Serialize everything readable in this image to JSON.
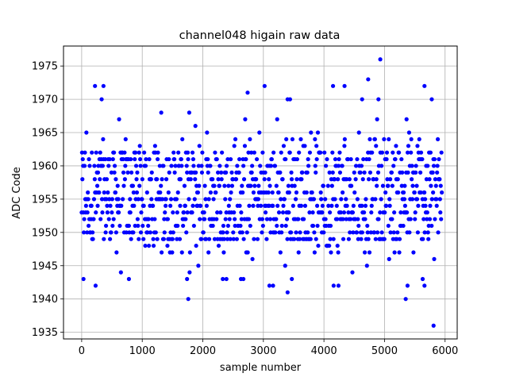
{
  "chart_data": {
    "type": "scatter",
    "title": "channel048 higain raw data",
    "xlabel": "sample number",
    "ylabel": "ADC Code",
    "xlim": [
      -300,
      6200
    ],
    "ylim": [
      1934,
      1978
    ],
    "xticks": [
      0,
      1000,
      2000,
      3000,
      4000,
      5000,
      6000
    ],
    "yticks": [
      1935,
      1940,
      1945,
      1950,
      1955,
      1960,
      1965,
      1970,
      1975
    ],
    "xtick_labels": [
      "0",
      "1000",
      "2000",
      "3000",
      "4000",
      "5000",
      "6000"
    ],
    "ytick_labels": [
      "1935",
      "1940",
      "1945",
      "1950",
      "1955",
      "1960",
      "1965",
      "1970",
      "1975"
    ],
    "grid": true,
    "marker_color": "#0000ff",
    "series": [
      {
        "n_samples": 5950,
        "core_range": [
          1947,
          1962
        ],
        "points": [
          [
            4930,
            1976
          ],
          [
            5810,
            1936
          ],
          [
            1760,
            1940
          ],
          [
            5350,
            1940
          ],
          [
            3400,
            1941
          ],
          [
            3100,
            1942
          ],
          [
            3160,
            1942
          ],
          [
            4160,
            1942
          ],
          [
            4240,
            1942
          ],
          [
            5660,
            1942
          ],
          [
            5380,
            1942
          ],
          [
            230,
            1942
          ],
          [
            30,
            1943
          ],
          [
            780,
            1943
          ],
          [
            1740,
            1943
          ],
          [
            2330,
            1943
          ],
          [
            2390,
            1943
          ],
          [
            2630,
            1943
          ],
          [
            2670,
            1943
          ],
          [
            3470,
            1943
          ],
          [
            5630,
            1943
          ],
          [
            4730,
            1973
          ],
          [
            220,
            1972
          ],
          [
            360,
            1972
          ],
          [
            3020,
            1972
          ],
          [
            4150,
            1972
          ],
          [
            4340,
            1972
          ],
          [
            5660,
            1972
          ],
          [
            2740,
            1971
          ],
          [
            5780,
            1970
          ],
          [
            330,
            1970
          ],
          [
            3400,
            1970
          ],
          [
            3440,
            1970
          ],
          [
            4630,
            1970
          ],
          [
            4900,
            1970
          ]
        ]
      }
    ]
  }
}
